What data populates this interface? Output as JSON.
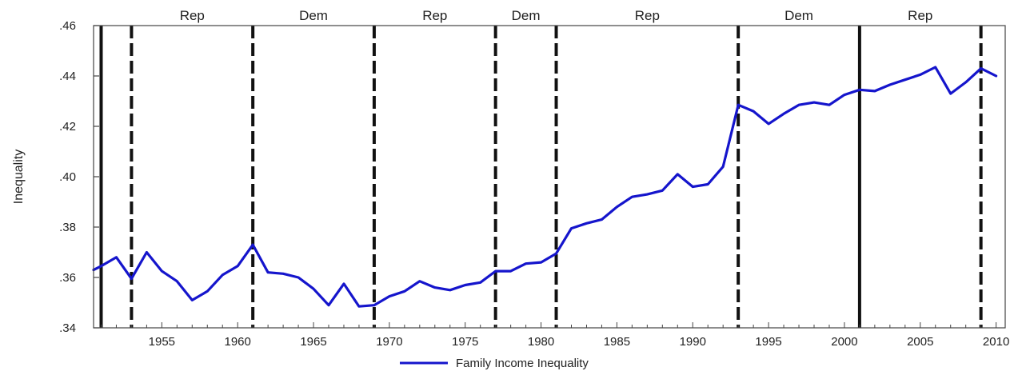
{
  "chart_data": {
    "type": "line",
    "ylabel": "Inequality",
    "xlim": [
      1950.5,
      2010.6
    ],
    "ylim": [
      0.34,
      0.46
    ],
    "y_ticks": [
      {
        "value": 0.34,
        "label": ".34"
      },
      {
        "value": 0.36,
        "label": ".36"
      },
      {
        "value": 0.38,
        "label": ".38"
      },
      {
        "value": 0.4,
        "label": ".40"
      },
      {
        "value": 0.42,
        "label": ".42"
      },
      {
        "value": 0.44,
        "label": ".44"
      },
      {
        "value": 0.46,
        "label": ".46"
      }
    ],
    "x_ticks": [
      {
        "value": 1955,
        "label": "1955"
      },
      {
        "value": 1960,
        "label": "1960"
      },
      {
        "value": 1965,
        "label": "1965"
      },
      {
        "value": 1970,
        "label": "1970"
      },
      {
        "value": 1975,
        "label": "1975"
      },
      {
        "value": 1980,
        "label": "1980"
      },
      {
        "value": 1985,
        "label": "1985"
      },
      {
        "value": 1990,
        "label": "1990"
      },
      {
        "value": 1995,
        "label": "1995"
      },
      {
        "value": 2000,
        "label": "2000"
      },
      {
        "value": 2005,
        "label": "2005"
      },
      {
        "value": 2010,
        "label": "2010"
      }
    ],
    "vertical_lines": [
      {
        "x": 1951,
        "style": "solid"
      },
      {
        "x": 1953,
        "style": "dashed"
      },
      {
        "x": 1961,
        "style": "dashed"
      },
      {
        "x": 1969,
        "style": "dashed"
      },
      {
        "x": 1977,
        "style": "dashed"
      },
      {
        "x": 1981,
        "style": "dashed"
      },
      {
        "x": 1993,
        "style": "dashed"
      },
      {
        "x": 2001,
        "style": "solid"
      },
      {
        "x": 2009,
        "style": "dashed"
      }
    ],
    "party_periods": [
      {
        "label": "Rep",
        "start": 1953,
        "end": 1961
      },
      {
        "label": "Dem",
        "start": 1961,
        "end": 1969
      },
      {
        "label": "Rep",
        "start": 1969,
        "end": 1977
      },
      {
        "label": "Dem",
        "start": 1977,
        "end": 1981
      },
      {
        "label": "Rep",
        "start": 1981,
        "end": 1993
      },
      {
        "label": "Dem",
        "start": 1993,
        "end": 2001
      },
      {
        "label": "Rep",
        "start": 2001,
        "end": 2009
      }
    ],
    "series": [
      {
        "name": "Family Income Inequality",
        "color": "#1515cc",
        "x": [
          1950.5,
          1951,
          1952,
          1953,
          1954,
          1955,
          1956,
          1957,
          1958,
          1959,
          1960,
          1961,
          1962,
          1963,
          1964,
          1965,
          1966,
          1967,
          1968,
          1969,
          1970,
          1971,
          1972,
          1973,
          1974,
          1975,
          1976,
          1977,
          1978,
          1979,
          1980,
          1981,
          1982,
          1983,
          1984,
          1985,
          1986,
          1987,
          1988,
          1989,
          1990,
          1991,
          1992,
          1993,
          1994,
          1995,
          1996,
          1997,
          1998,
          1999,
          2000,
          2001,
          2002,
          2003,
          2004,
          2005,
          2006,
          2007,
          2008,
          2009,
          2010
        ],
        "values": [
          0.363,
          0.3645,
          0.368,
          0.3595,
          0.37,
          0.3625,
          0.3585,
          0.351,
          0.3545,
          0.361,
          0.3645,
          0.373,
          0.362,
          0.3615,
          0.36,
          0.3555,
          0.349,
          0.3575,
          0.3485,
          0.349,
          0.3525,
          0.3545,
          0.3585,
          0.356,
          0.355,
          0.357,
          0.358,
          0.3625,
          0.3625,
          0.3655,
          0.366,
          0.3695,
          0.3795,
          0.3815,
          0.383,
          0.388,
          0.392,
          0.393,
          0.3945,
          0.401,
          0.396,
          0.397,
          0.404,
          0.4285,
          0.426,
          0.421,
          0.425,
          0.4285,
          0.4295,
          0.4285,
          0.4325,
          0.4345,
          0.434,
          0.4365,
          0.4385,
          0.4405,
          0.4435,
          0.433,
          0.4375,
          0.443,
          0.44
        ]
      }
    ],
    "legend": {
      "position": "bottom-center"
    }
  }
}
